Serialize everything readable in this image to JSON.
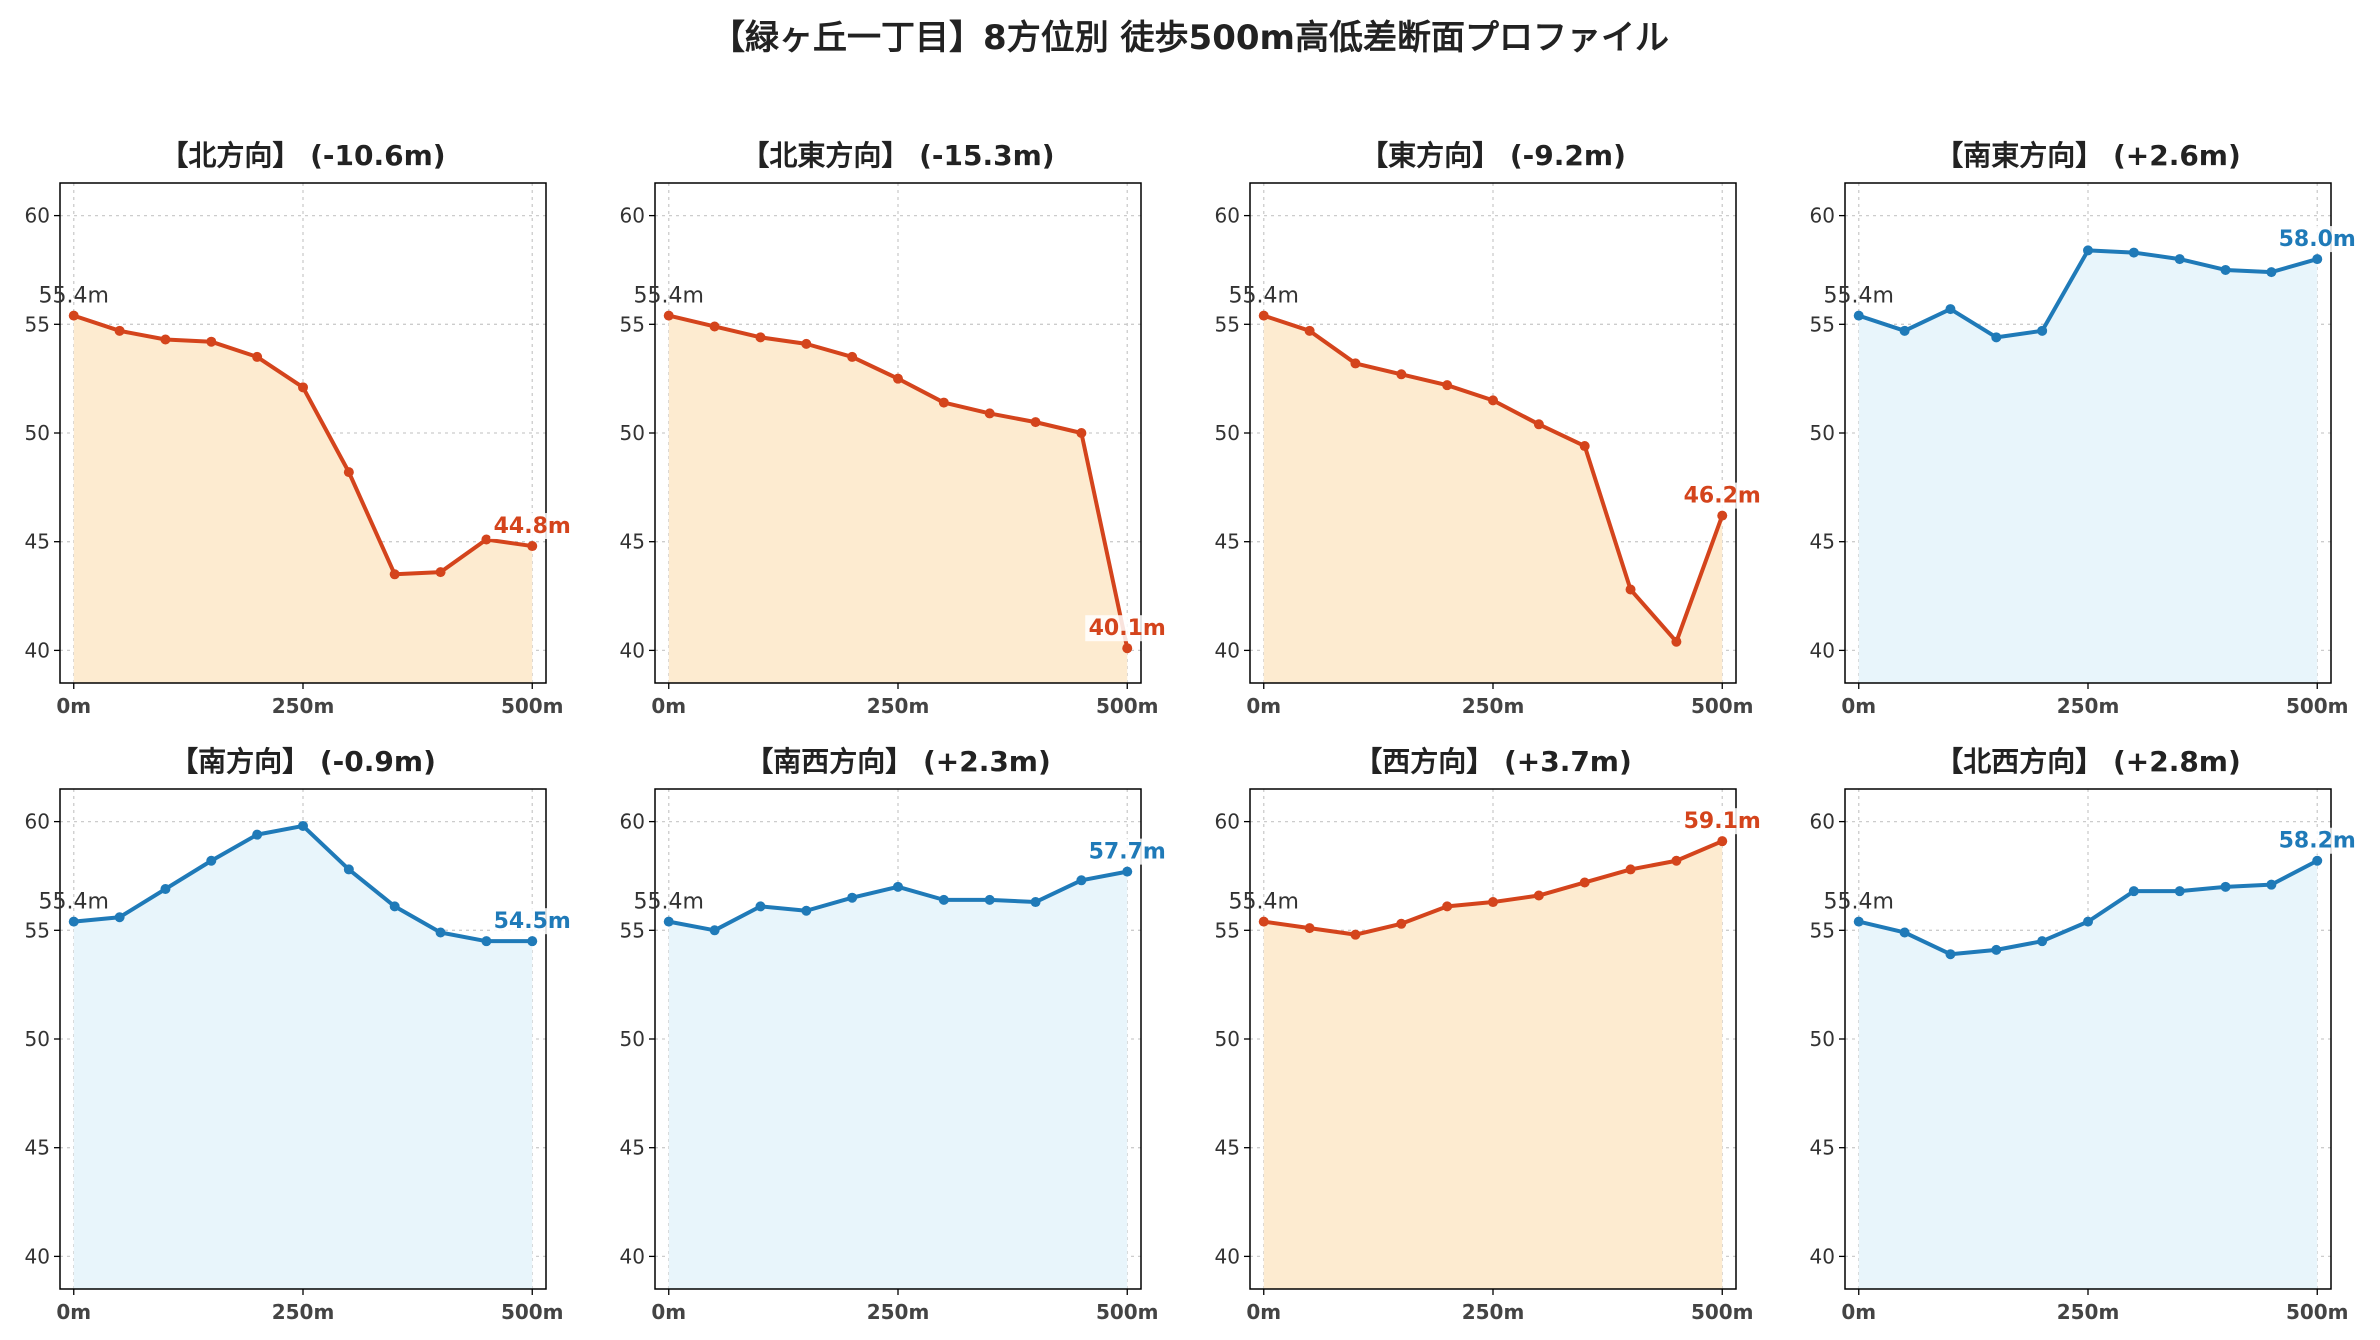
{
  "title": "【緑ヶ丘一丁目】8方位別 徒歩500m高低差断面プロファイル",
  "colors": {
    "down_line": "#d4441c",
    "down_fill": "#fdebd0",
    "up_line": "#1f7ab8",
    "up_fill": "#e8f5fb",
    "start_label": "#333333",
    "grid": "#cccccc",
    "axis": "#000000"
  },
  "chart_data": [
    {
      "type": "area",
      "title": "【北方向】 (-10.6m)",
      "style": "orange",
      "x": [
        0,
        50,
        100,
        150,
        200,
        250,
        300,
        350,
        400,
        450,
        500
      ],
      "values": [
        55.4,
        54.7,
        54.3,
        54.2,
        53.5,
        52.1,
        48.2,
        43.5,
        43.6,
        45.1,
        44.8
      ],
      "start_label": "55.4m",
      "end_label": "44.8m",
      "xticks": [
        0,
        250,
        500
      ],
      "xtick_labels": [
        "0m",
        "250m",
        "500m"
      ],
      "yticks": [
        40,
        45,
        50,
        55,
        60
      ],
      "xlim": [
        -15,
        515
      ],
      "ylim": [
        38.5,
        61.5
      ],
      "grid": true
    },
    {
      "type": "area",
      "title": "【北東方向】 (-15.3m)",
      "style": "orange",
      "x": [
        0,
        50,
        100,
        150,
        200,
        250,
        300,
        350,
        400,
        450,
        500
      ],
      "values": [
        55.4,
        54.9,
        54.4,
        54.1,
        53.5,
        52.5,
        51.4,
        50.9,
        50.5,
        50.0,
        40.1
      ],
      "start_label": "55.4m",
      "end_label": "40.1m",
      "xticks": [
        0,
        250,
        500
      ],
      "xtick_labels": [
        "0m",
        "250m",
        "500m"
      ],
      "yticks": [
        40,
        45,
        50,
        55,
        60
      ],
      "xlim": [
        -15,
        515
      ],
      "ylim": [
        38.5,
        61.5
      ],
      "grid": true
    },
    {
      "type": "area",
      "title": "【東方向】 (-9.2m)",
      "style": "orange",
      "x": [
        0,
        50,
        100,
        150,
        200,
        250,
        300,
        350,
        400,
        450,
        500
      ],
      "values": [
        55.4,
        54.7,
        53.2,
        52.7,
        52.2,
        51.5,
        50.4,
        49.4,
        42.8,
        40.4,
        46.2
      ],
      "start_label": "55.4m",
      "end_label": "46.2m",
      "xticks": [
        0,
        250,
        500
      ],
      "xtick_labels": [
        "0m",
        "250m",
        "500m"
      ],
      "yticks": [
        40,
        45,
        50,
        55,
        60
      ],
      "xlim": [
        -15,
        515
      ],
      "ylim": [
        38.5,
        61.5
      ],
      "grid": true
    },
    {
      "type": "area",
      "title": "【南東方向】 (+2.6m)",
      "style": "blue",
      "x": [
        0,
        50,
        100,
        150,
        200,
        250,
        300,
        350,
        400,
        450,
        500
      ],
      "values": [
        55.4,
        54.7,
        55.7,
        54.4,
        54.7,
        58.4,
        58.3,
        58.0,
        57.5,
        57.4,
        58.0
      ],
      "start_label": "55.4m",
      "end_label": "58.0m",
      "xticks": [
        0,
        250,
        500
      ],
      "xtick_labels": [
        "0m",
        "250m",
        "500m"
      ],
      "yticks": [
        40,
        45,
        50,
        55,
        60
      ],
      "xlim": [
        -15,
        515
      ],
      "ylim": [
        38.5,
        61.5
      ],
      "grid": true
    },
    {
      "type": "area",
      "title": "【南方向】 (-0.9m)",
      "style": "blue",
      "x": [
        0,
        50,
        100,
        150,
        200,
        250,
        300,
        350,
        400,
        450,
        500
      ],
      "values": [
        55.4,
        55.6,
        56.9,
        58.2,
        59.4,
        59.8,
        57.8,
        56.1,
        54.9,
        54.5,
        54.5
      ],
      "start_label": "55.4m",
      "end_label": "54.5m",
      "xticks": [
        0,
        250,
        500
      ],
      "xtick_labels": [
        "0m",
        "250m",
        "500m"
      ],
      "yticks": [
        40,
        45,
        50,
        55,
        60
      ],
      "xlim": [
        -15,
        515
      ],
      "ylim": [
        38.5,
        61.5
      ],
      "grid": true
    },
    {
      "type": "area",
      "title": "【南西方向】 (+2.3m)",
      "style": "blue",
      "x": [
        0,
        50,
        100,
        150,
        200,
        250,
        300,
        350,
        400,
        450,
        500
      ],
      "values": [
        55.4,
        55.0,
        56.1,
        55.9,
        56.5,
        57.0,
        56.4,
        56.4,
        56.3,
        57.3,
        57.7
      ],
      "start_label": "55.4m",
      "end_label": "57.7m",
      "xticks": [
        0,
        250,
        500
      ],
      "xtick_labels": [
        "0m",
        "250m",
        "500m"
      ],
      "yticks": [
        40,
        45,
        50,
        55,
        60
      ],
      "xlim": [
        -15,
        515
      ],
      "ylim": [
        38.5,
        61.5
      ],
      "grid": true
    },
    {
      "type": "area",
      "title": "【西方向】 (+3.7m)",
      "style": "orange",
      "x": [
        0,
        50,
        100,
        150,
        200,
        250,
        300,
        350,
        400,
        450,
        500
      ],
      "values": [
        55.4,
        55.1,
        54.8,
        55.3,
        56.1,
        56.3,
        56.6,
        57.2,
        57.8,
        58.2,
        59.1
      ],
      "start_label": "55.4m",
      "end_label": "59.1m",
      "xticks": [
        0,
        250,
        500
      ],
      "xtick_labels": [
        "0m",
        "250m",
        "500m"
      ],
      "yticks": [
        40,
        45,
        50,
        55,
        60
      ],
      "xlim": [
        -15,
        515
      ],
      "ylim": [
        38.5,
        61.5
      ],
      "grid": true
    },
    {
      "type": "area",
      "title": "【北西方向】 (+2.8m)",
      "style": "blue",
      "x": [
        0,
        50,
        100,
        150,
        200,
        250,
        300,
        350,
        400,
        450,
        500
      ],
      "values": [
        55.4,
        54.9,
        53.9,
        54.1,
        54.5,
        55.4,
        56.8,
        56.8,
        57.0,
        57.1,
        58.2
      ],
      "start_label": "55.4m",
      "end_label": "58.2m",
      "xticks": [
        0,
        250,
        500
      ],
      "xtick_labels": [
        "0m",
        "250m",
        "500m"
      ],
      "yticks": [
        40,
        45,
        50,
        55,
        60
      ],
      "xlim": [
        -15,
        515
      ],
      "ylim": [
        38.5,
        61.5
      ],
      "grid": true
    }
  ]
}
